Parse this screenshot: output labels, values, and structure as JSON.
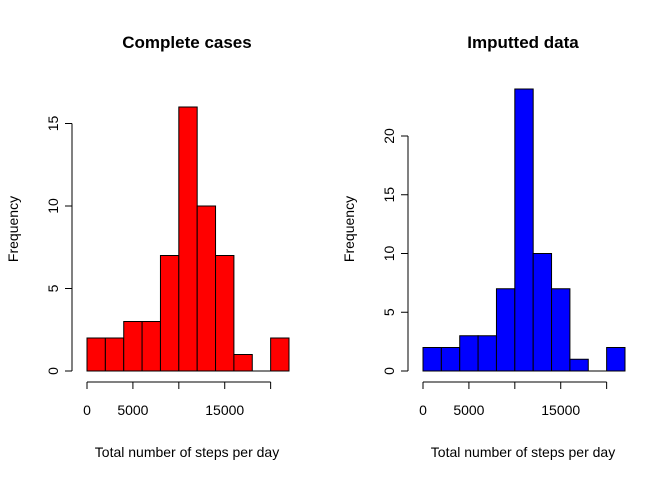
{
  "chart_data": [
    {
      "type": "bar",
      "title": "Complete cases",
      "xlabel": "Total number of steps per day",
      "ylabel": "Frequency",
      "fill_color": "#ff0000",
      "bin_edges": [
        0,
        2000,
        4000,
        6000,
        8000,
        10000,
        12000,
        14000,
        16000,
        18000,
        20000,
        22000
      ],
      "values": [
        2,
        2,
        3,
        3,
        7,
        16,
        10,
        7,
        1,
        0,
        2
      ],
      "xlim": [
        0,
        22000
      ],
      "ylim": [
        0,
        16
      ],
      "xticks": [
        0,
        5000,
        15000
      ],
      "xtick_marks": [
        0,
        5000,
        10000,
        15000,
        20000
      ],
      "yticks": [
        0,
        5,
        10,
        15
      ],
      "grid": false
    },
    {
      "type": "bar",
      "title": "Imputted data",
      "xlabel": "Total number of steps per day",
      "ylabel": "Frequency",
      "fill_color": "#0000ff",
      "bin_edges": [
        0,
        2000,
        4000,
        6000,
        8000,
        10000,
        12000,
        14000,
        16000,
        18000,
        20000,
        22000
      ],
      "values": [
        2,
        2,
        3,
        3,
        7,
        24,
        10,
        7,
        1,
        0,
        2
      ],
      "xlim": [
        0,
        22000
      ],
      "ylim": [
        0,
        24
      ],
      "xticks": [
        0,
        5000,
        15000
      ],
      "xtick_marks": [
        0,
        5000,
        10000,
        15000,
        20000
      ],
      "yticks": [
        0,
        5,
        10,
        15,
        20
      ],
      "grid": false
    }
  ]
}
